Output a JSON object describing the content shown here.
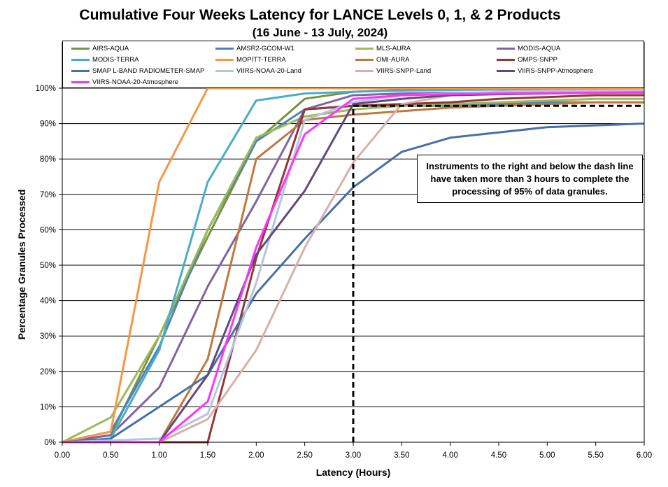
{
  "chart_data": {
    "type": "line",
    "title": "Cumulative Four Weeks Latency  for LANCE Levels 0, 1, & 2 Products",
    "subtitle": "(16  June   -  13  July,  2024)",
    "xlabel": "Latency (Hours)",
    "ylabel": "Percentage Granules Processed",
    "xlim": [
      0,
      6
    ],
    "ylim": [
      0,
      100
    ],
    "x_ticks": [
      "0.00",
      "0.50",
      "1.00",
      "1.50",
      "2.00",
      "2.50",
      "3.00",
      "3.50",
      "4.00",
      "4.50",
      "5.00",
      "5.50",
      "6.00"
    ],
    "y_ticks": [
      "0%",
      "10%",
      "20%",
      "30%",
      "40%",
      "50%",
      "60%",
      "70%",
      "80%",
      "90%",
      "100%"
    ],
    "grid": "horizontal",
    "legend_position": "top",
    "annotation": "Instruments to the right and below the dash line have taken more than 3 hours to complete the processing of 95% of data granules.",
    "reference_lines": [
      {
        "style": "dashed",
        "x": [
          3.0,
          3.0
        ],
        "y": [
          0,
          95
        ]
      },
      {
        "style": "dashed",
        "x": [
          3.0,
          6.0
        ],
        "y": [
          95,
          95
        ]
      }
    ],
    "series": [
      {
        "name": "AIRS-AQUA",
        "color": "#77933c",
        "x": [
          0,
          0.5,
          1,
          1.5,
          2,
          2.5,
          3,
          3.5,
          4,
          4.5,
          5,
          5.5,
          6
        ],
        "y": [
          0,
          2,
          30,
          58,
          85,
          97,
          99,
          99.5,
          99.6,
          99.7,
          99.8,
          99.9,
          99.9
        ]
      },
      {
        "name": "AMSR2-GCOM-W1",
        "color": "#4f81bd",
        "x": [
          0,
          0.5,
          1,
          1.5,
          2,
          2.5,
          3,
          3.5,
          4,
          4.5,
          5,
          5.5,
          6
        ],
        "y": [
          0,
          3,
          27,
          60,
          85,
          94,
          95,
          95,
          95,
          95.5,
          96,
          96,
          96
        ]
      },
      {
        "name": "MLS-AURA",
        "color": "#9bbb59",
        "x": [
          0,
          0.5,
          1,
          1.5,
          2,
          2.5,
          3,
          3.5,
          4,
          4.5,
          5,
          5.5,
          6
        ],
        "y": [
          0,
          7,
          30,
          60,
          86,
          92,
          94,
          95,
          95.5,
          96,
          96.5,
          97,
          97
        ]
      },
      {
        "name": "MODIS-AQUA",
        "color": "#8064a2",
        "x": [
          0,
          0.5,
          1,
          1.5,
          2,
          2.5,
          3,
          3.5,
          4,
          4.5,
          5,
          5.5,
          6
        ],
        "y": [
          0,
          2,
          15.5,
          44,
          68,
          94,
          98,
          98.5,
          98.7,
          98.8,
          98.9,
          99,
          99
        ]
      },
      {
        "name": "MODIS-TERRA",
        "color": "#4bacc6",
        "x": [
          0,
          0.5,
          1,
          1.5,
          2,
          2.5,
          3,
          3.5,
          4,
          4.5,
          5,
          5.5,
          6
        ],
        "y": [
          0,
          1,
          26,
          73.5,
          96.5,
          98.5,
          99,
          99.3,
          99.5,
          99.6,
          99.7,
          99.8,
          99.8
        ]
      },
      {
        "name": "MOPITT-TERRA",
        "color": "#f79646",
        "x": [
          0,
          0.5,
          1,
          1.5,
          2,
          2.5,
          3,
          3.5,
          4,
          4.5,
          5,
          5.5,
          6
        ],
        "y": [
          0,
          3,
          73.5,
          100,
          100,
          100,
          100,
          100,
          100,
          100,
          100,
          100,
          100
        ]
      },
      {
        "name": "OMI-AURA",
        "color": "#c0783c",
        "x": [
          0,
          0.5,
          1,
          1.5,
          2,
          2.5,
          3,
          3.5,
          4,
          4.5,
          5,
          5.5,
          6
        ],
        "y": [
          0,
          0,
          0,
          23.5,
          80,
          91,
          92.5,
          93.5,
          94.5,
          95,
          95.5,
          96,
          96
        ]
      },
      {
        "name": "OMPS-SNPP",
        "color": "#943634",
        "x": [
          0,
          0.5,
          1,
          1.5,
          2,
          2.5,
          3,
          3.5,
          4,
          4.5,
          5,
          5.5,
          6
        ],
        "y": [
          0,
          0,
          0,
          0,
          52,
          94,
          95,
          95.5,
          96,
          97,
          97.5,
          98,
          98
        ]
      },
      {
        "name": "SMAP L-BAND RADIOMETER-SMAP",
        "color": "#4670a8",
        "x": [
          0,
          0.5,
          1,
          1.5,
          2,
          2.5,
          3,
          3.5,
          4,
          4.5,
          5,
          5.5,
          6
        ],
        "y": [
          0,
          1,
          10,
          19,
          42,
          57.5,
          72,
          82,
          86,
          87.5,
          89,
          89.5,
          90
        ]
      },
      {
        "name": "VIIRS-NOAA-20-Land",
        "color": "#b3c5e0",
        "x": [
          0,
          0.5,
          1,
          1.5,
          2,
          2.5,
          3,
          3.5,
          4,
          4.5,
          5,
          5.5,
          6
        ],
        "y": [
          0,
          0.5,
          1,
          8,
          45,
          91,
          96,
          98,
          98.5,
          99,
          99.2,
          99.3,
          99.4
        ]
      },
      {
        "name": "VIIRS-SNPP-Land",
        "color": "#d9b0a8",
        "x": [
          0,
          0.5,
          1,
          1.5,
          2,
          2.5,
          3,
          3.5,
          4,
          4.5,
          5,
          5.5,
          6
        ],
        "y": [
          0,
          0,
          0,
          6.5,
          26,
          55,
          79,
          95.5,
          98,
          98.5,
          98.8,
          99,
          99
        ]
      },
      {
        "name": "VIIRS-SNPP-Atmosphere",
        "color": "#604a7b",
        "x": [
          0,
          0.5,
          1,
          1.5,
          2,
          2.5,
          3,
          3.5,
          4,
          4.5,
          5,
          5.5,
          6
        ],
        "y": [
          0,
          0,
          0,
          19,
          53,
          71,
          95.5,
          97,
          98,
          98.3,
          98.5,
          98.7,
          98.8
        ]
      },
      {
        "name": "VIIRS-NOAA-20-Atmosphere",
        "color": "#ff33ff",
        "x": [
          0,
          0.5,
          1,
          1.5,
          2,
          2.5,
          3,
          3.5,
          4,
          4.5,
          5,
          5.5,
          6
        ],
        "y": [
          0,
          0,
          0,
          11.5,
          55,
          87,
          97,
          98,
          98.3,
          98.5,
          98.6,
          98.7,
          98.7
        ]
      }
    ]
  }
}
